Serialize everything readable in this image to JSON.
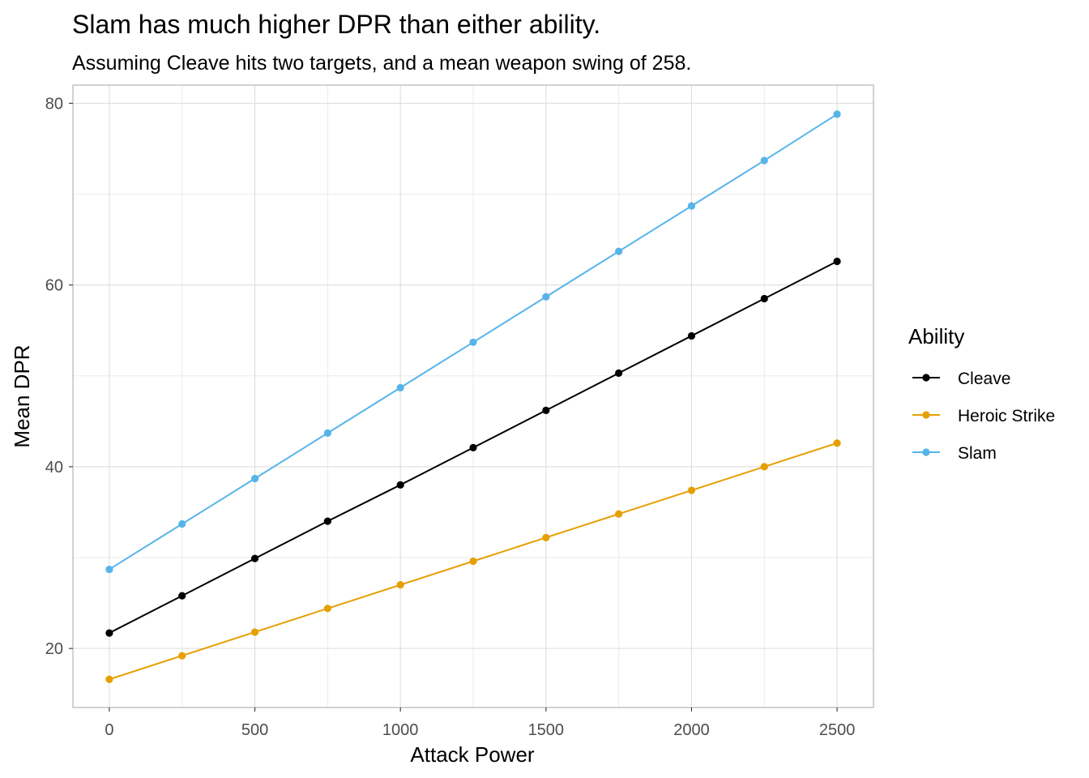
{
  "chart_data": {
    "type": "line",
    "title": "Slam has much higher DPR than either ability.",
    "subtitle": "Assuming Cleave hits two targets, and a mean weapon swing of 258.",
    "xlabel": "Attack Power",
    "ylabel": "Mean DPR",
    "xlim": [
      -125,
      2625
    ],
    "ylim": [
      13.5,
      82
    ],
    "x_ticks": [
      0,
      500,
      1000,
      1500,
      2000,
      2500
    ],
    "y_ticks": [
      20,
      40,
      60,
      80
    ],
    "grid": true,
    "legend": {
      "title": "Ability",
      "position": "right"
    },
    "x": [
      0,
      250,
      500,
      750,
      1000,
      1250,
      1500,
      1750,
      2000,
      2250,
      2500
    ],
    "series": [
      {
        "name": "Cleave",
        "color": "#000000",
        "values": [
          21.7,
          25.8,
          29.9,
          34.0,
          38.0,
          42.1,
          46.2,
          50.3,
          54.4,
          58.5,
          62.6
        ]
      },
      {
        "name": "Heroic Strike",
        "color": "#E69F00",
        "values": [
          16.6,
          19.2,
          21.8,
          24.4,
          27.0,
          29.6,
          32.2,
          34.8,
          37.4,
          40.0,
          42.6
        ]
      },
      {
        "name": "Slam",
        "color": "#56B4E9",
        "values": [
          28.7,
          33.7,
          38.7,
          43.7,
          48.7,
          53.7,
          58.7,
          63.7,
          68.7,
          73.7,
          78.8
        ]
      }
    ]
  }
}
